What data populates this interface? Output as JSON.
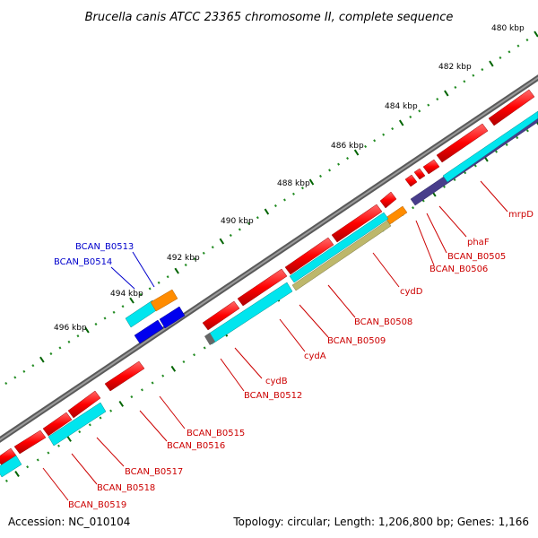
{
  "title": "Brucella canis ATCC 23365 chromosome II, complete sequence",
  "footer": {
    "accession": "Accession: NC_010104",
    "topology": "Topology: circular; Length: 1,206,800 bp; Genes: 1,166"
  },
  "scale_ticks": [
    "480 kbp",
    "482 kbp",
    "484 kbp",
    "486 kbp",
    "488 kbp",
    "490 kbp",
    "492 kbp",
    "494 kbp",
    "496 kbp"
  ],
  "gene_labels": [
    {
      "name": "BCAN_B0513",
      "color": "#0000cc"
    },
    {
      "name": "BCAN_B0514",
      "color": "#0000cc"
    },
    {
      "name": "mrpD",
      "color": "#cc0000"
    },
    {
      "name": "phaF",
      "color": "#cc0000"
    },
    {
      "name": "BCAN_B0505",
      "color": "#cc0000"
    },
    {
      "name": "BCAN_B0506",
      "color": "#cc0000"
    },
    {
      "name": "cydD",
      "color": "#cc0000"
    },
    {
      "name": "BCAN_B0508",
      "color": "#cc0000"
    },
    {
      "name": "BCAN_B0509",
      "color": "#cc0000"
    },
    {
      "name": "cydA",
      "color": "#cc0000"
    },
    {
      "name": "cydB",
      "color": "#cc0000"
    },
    {
      "name": "BCAN_B0512",
      "color": "#cc0000"
    },
    {
      "name": "BCAN_B0515",
      "color": "#cc0000"
    },
    {
      "name": "BCAN_B0516",
      "color": "#cc0000"
    },
    {
      "name": "BCAN_B0517",
      "color": "#cc0000"
    },
    {
      "name": "BCAN_B0518",
      "color": "#cc0000"
    },
    {
      "name": "BCAN_B0519",
      "color": "#cc0000"
    }
  ],
  "colors": {
    "backbone": "#7a7a7a",
    "cds": "#ff0000",
    "blast_cyan": "#00e5ee",
    "blast_purple": "#483d8b",
    "blast_orange": "#ff8c00",
    "blast_khaki": "#bdb76b",
    "blast_blue": "#0000ee",
    "tick_major": "#006400",
    "tick_minor": "#228b22",
    "label_red": "#cc0000",
    "label_blue": "#0000cc"
  }
}
